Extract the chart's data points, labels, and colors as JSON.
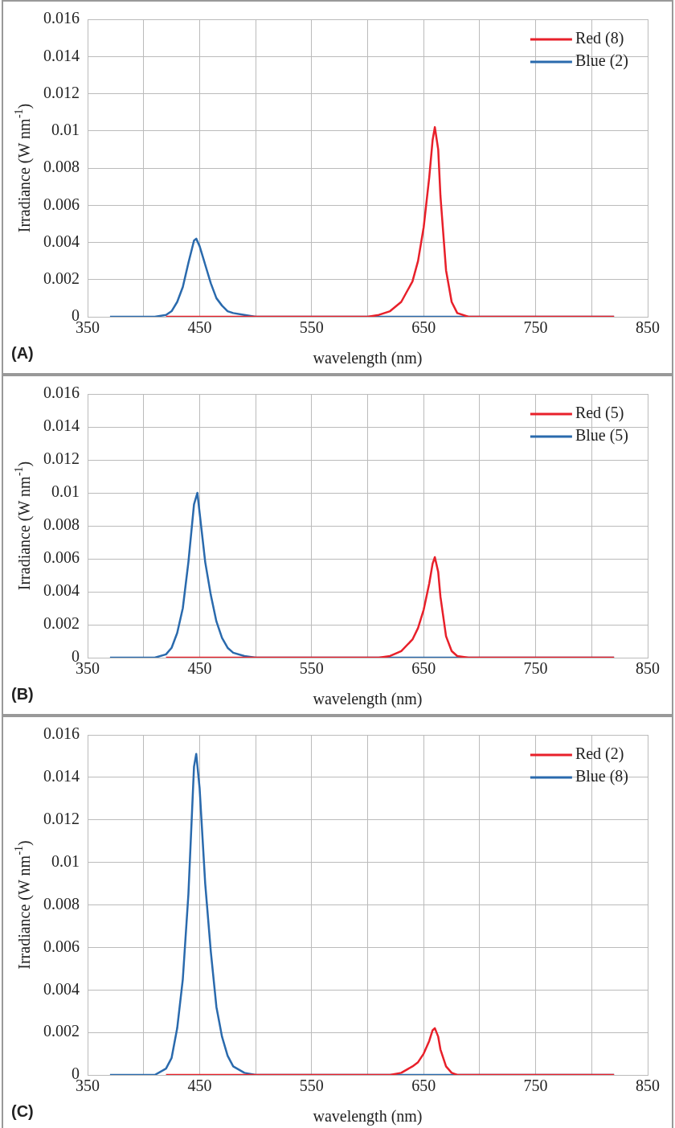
{
  "chart_data": [
    {
      "type": "line",
      "xlabel": "wavelength (nm)",
      "ylabel": "Irradiance (W nm$^{-1}$)",
      "annotations": [
        "(A)"
      ],
      "xlim": [
        350,
        850
      ],
      "xticks": [
        350,
        {
          "value": 400,
          "label": null
        },
        450,
        {
          "value": 500,
          "label": null
        },
        550,
        {
          "value": 600,
          "label": null
        },
        650,
        {
          "value": 700,
          "label": null
        },
        750,
        {
          "value": 800,
          "label": null
        },
        850
      ],
      "ylim": [
        0,
        0.016
      ],
      "yticks": [
        0,
        0.002,
        0.004,
        0.006,
        0.008,
        0.01,
        0.012,
        0.014,
        0.016
      ],
      "grid": true,
      "legend": "top right",
      "marker": "none",
      "line_style": "solid",
      "series": [
        {
          "name": "Red (8)",
          "color": "#e8202a",
          "x": [
            420,
            600,
            610,
            620,
            630,
            640,
            645,
            650,
            655,
            658,
            660,
            663,
            665,
            670,
            675,
            680,
            690,
            820
          ],
          "values": [
            0,
            0,
            0.0001,
            0.0003,
            0.0008,
            0.0019,
            0.003,
            0.0048,
            0.0075,
            0.0095,
            0.0102,
            0.009,
            0.0065,
            0.0025,
            0.0008,
            0.0002,
            0,
            0
          ]
        },
        {
          "name": "Blue (2)",
          "color": "#2a6aad",
          "x": [
            370,
            410,
            420,
            425,
            430,
            435,
            440,
            445,
            447,
            450,
            455,
            460,
            465,
            470,
            475,
            480,
            490,
            500,
            820
          ],
          "values": [
            0,
            0,
            0.0001,
            0.0003,
            0.0008,
            0.0016,
            0.0029,
            0.0041,
            0.0042,
            0.0038,
            0.0028,
            0.0018,
            0.001,
            0.0006,
            0.0003,
            0.0002,
            0.0001,
            0,
            0
          ]
        }
      ]
    },
    {
      "type": "line",
      "xlabel": "wavelength (nm)",
      "ylabel": "Irradiance (W nm$^{-1}$)",
      "annotations": [
        "(B)"
      ],
      "xlim": [
        350,
        850
      ],
      "xticks": [
        350,
        {
          "value": 400,
          "label": null
        },
        450,
        {
          "value": 500,
          "label": null
        },
        550,
        {
          "value": 600,
          "label": null
        },
        650,
        {
          "value": 700,
          "label": null
        },
        750,
        {
          "value": 800,
          "label": null
        },
        850
      ],
      "ylim": [
        0,
        0.016
      ],
      "yticks": [
        0,
        0.002,
        0.004,
        0.006,
        0.008,
        0.01,
        0.012,
        0.014,
        0.016
      ],
      "grid": true,
      "legend": "top right",
      "marker": "none",
      "line_style": "solid",
      "series": [
        {
          "name": "Red (5)",
          "color": "#e8202a",
          "x": [
            420,
            600,
            610,
            620,
            630,
            640,
            645,
            650,
            655,
            658,
            660,
            663,
            665,
            670,
            675,
            680,
            690,
            820
          ],
          "values": [
            0,
            0,
            0,
            0.0001,
            0.0004,
            0.0011,
            0.0018,
            0.0029,
            0.0045,
            0.0057,
            0.0061,
            0.0052,
            0.0037,
            0.0013,
            0.0004,
            0.0001,
            0,
            0
          ]
        },
        {
          "name": "Blue (5)",
          "color": "#2a6aad",
          "x": [
            370,
            410,
            420,
            425,
            430,
            435,
            440,
            445,
            448,
            450,
            455,
            460,
            465,
            470,
            475,
            480,
            490,
            500,
            820
          ],
          "values": [
            0,
            0,
            0.0002,
            0.0006,
            0.0015,
            0.003,
            0.0058,
            0.0093,
            0.01,
            0.0088,
            0.0058,
            0.0038,
            0.0022,
            0.0012,
            0.0006,
            0.0003,
            0.0001,
            0,
            0
          ]
        }
      ]
    },
    {
      "type": "line",
      "xlabel": "wavelength (nm)",
      "ylabel": "Irradiance (W nm$^{-1}$)",
      "annotations": [
        "(C)"
      ],
      "xlim": [
        350,
        850
      ],
      "xticks": [
        350,
        {
          "value": 400,
          "label": null
        },
        450,
        {
          "value": 500,
          "label": null
        },
        550,
        {
          "value": 600,
          "label": null
        },
        650,
        {
          "value": 700,
          "label": null
        },
        750,
        {
          "value": 800,
          "label": null
        },
        850
      ],
      "ylim": [
        0,
        0.016
      ],
      "yticks": [
        0,
        0.002,
        0.004,
        0.006,
        0.008,
        0.01,
        0.012,
        0.014,
        0.016
      ],
      "grid": true,
      "legend": "top right",
      "marker": "none",
      "line_style": "solid",
      "series": [
        {
          "name": "Red (2)",
          "color": "#e8202a",
          "x": [
            420,
            600,
            610,
            620,
            630,
            640,
            645,
            650,
            655,
            658,
            660,
            663,
            665,
            670,
            675,
            680,
            690,
            820
          ],
          "values": [
            0,
            0,
            0,
            0,
            0.0001,
            0.0004,
            0.0006,
            0.001,
            0.0016,
            0.0021,
            0.0022,
            0.0018,
            0.0012,
            0.0004,
            0.0001,
            0,
            0,
            0
          ]
        },
        {
          "name": "Blue (8)",
          "color": "#2a6aad",
          "x": [
            370,
            410,
            420,
            425,
            430,
            435,
            440,
            445,
            447,
            450,
            455,
            460,
            465,
            470,
            475,
            480,
            490,
            500,
            820
          ],
          "values": [
            0,
            0,
            0.0003,
            0.0008,
            0.0022,
            0.0045,
            0.0085,
            0.0145,
            0.0151,
            0.0135,
            0.009,
            0.0058,
            0.0032,
            0.0018,
            0.0009,
            0.0004,
            0.0001,
            0,
            0
          ]
        }
      ]
    }
  ]
}
